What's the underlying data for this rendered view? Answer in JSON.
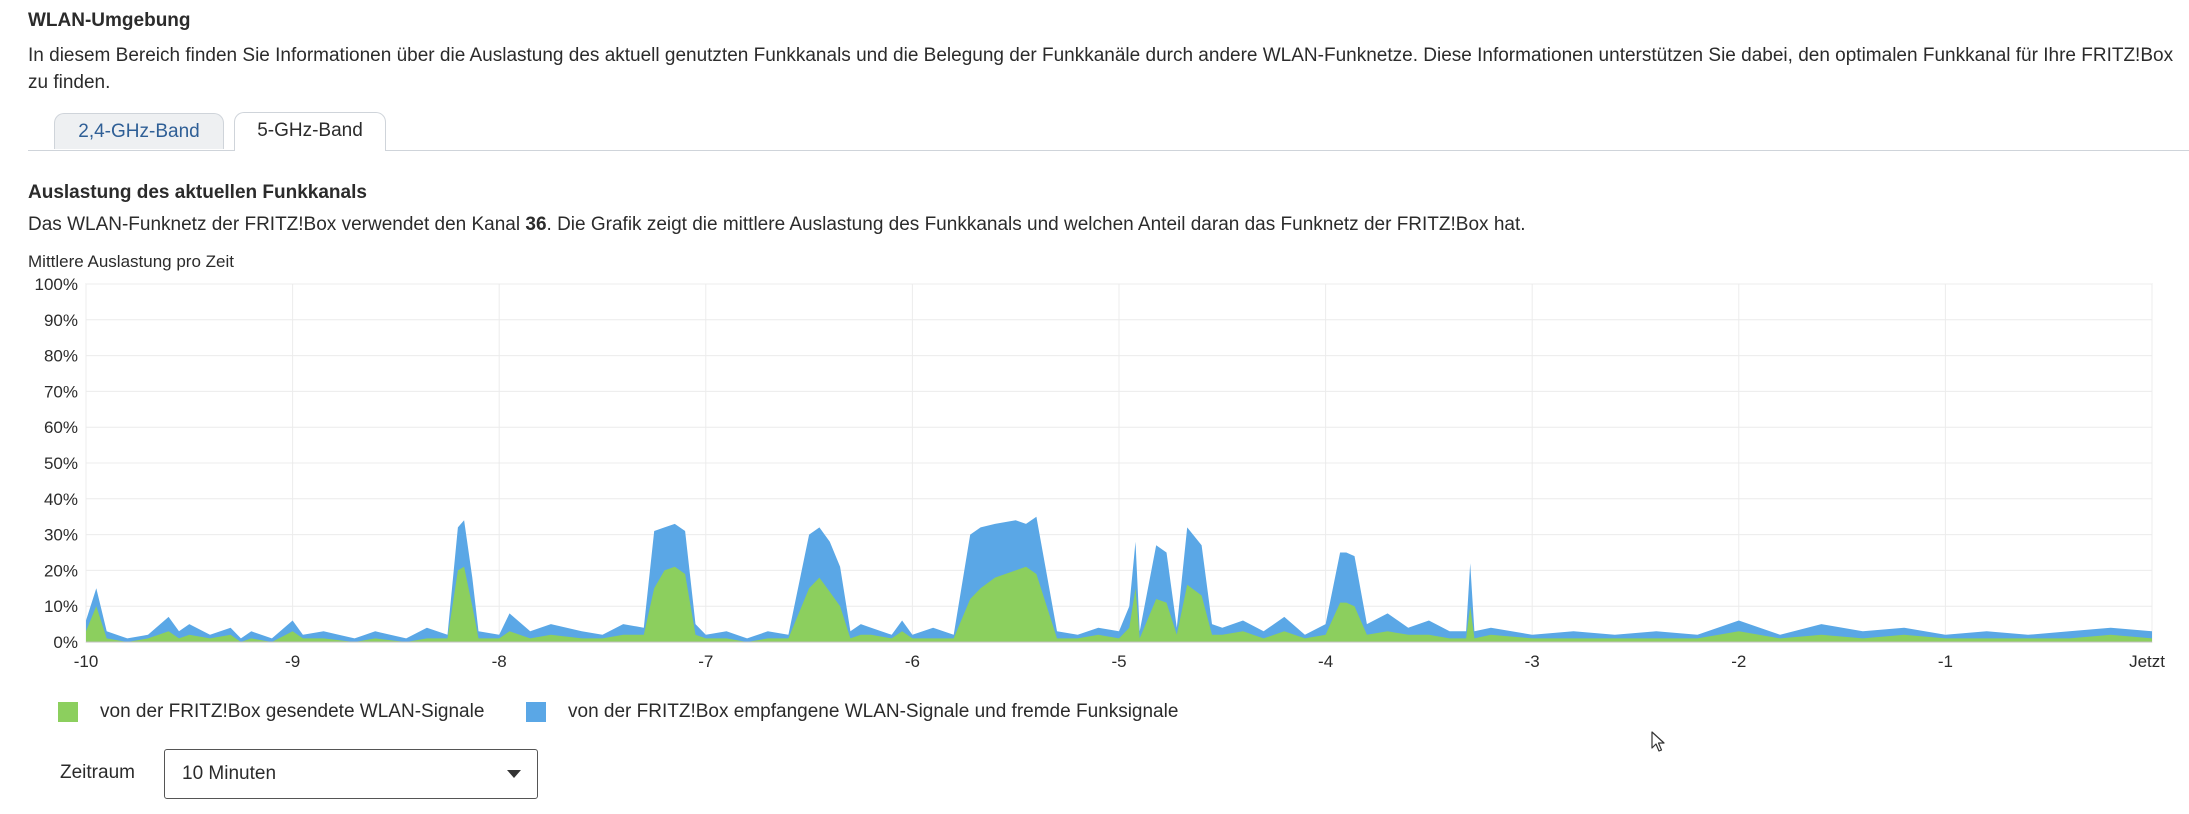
{
  "section": {
    "title": "WLAN-Umgebung",
    "intro": "In diesem Bereich finden Sie Informationen über die Auslastung des aktuell genutzten Funkkanals und die Belegung der Funkkanäle durch andere WLAN-Funknetze. Diese Informationen unterstützen Sie dabei, den optimalen Funkkanal für Ihre FRITZ!Box zu finden."
  },
  "tabs": [
    {
      "label": "2,4-GHz-Band",
      "active": false
    },
    {
      "label": "5-GHz-Band",
      "active": true
    }
  ],
  "channel": {
    "title": "Auslastung des aktuellen Funkkanals",
    "desc_pre": "Das WLAN-Funknetz der FRITZ!Box verwendet den Kanal ",
    "channel_number": "36",
    "desc_post": ". Die Grafik zeigt die mittlere Auslastung des Funkkanals und welchen Anteil daran das Funknetz der FRITZ!Box hat.",
    "chart_label": "Mittlere Auslastung pro Zeit"
  },
  "chart_data": {
    "type": "area",
    "title": "",
    "xlabel": "",
    "ylabel": "Mittlere Auslastung pro Zeit",
    "xlim": [
      -10,
      0
    ],
    "ylim": [
      0,
      100
    ],
    "x_ticks": [
      "-10",
      "-9",
      "-8",
      "-7",
      "-6",
      "-5",
      "-4",
      "-3",
      "-2",
      "-1",
      "Jetzt"
    ],
    "y_ticks": [
      "0%",
      "10%",
      "20%",
      "30%",
      "40%",
      "50%",
      "60%",
      "70%",
      "80%",
      "90%",
      "100%"
    ],
    "grid": true,
    "stacked": false,
    "x": [
      -10,
      -9.95,
      -9.9,
      -9.8,
      -9.7,
      -9.6,
      -9.55,
      -9.5,
      -9.4,
      -9.3,
      -9.25,
      -9.2,
      -9.1,
      -9.0,
      -8.95,
      -8.85,
      -8.7,
      -8.6,
      -8.45,
      -8.35,
      -8.25,
      -8.2,
      -8.17,
      -8.13,
      -8.1,
      -8.0,
      -7.95,
      -7.85,
      -7.75,
      -7.6,
      -7.5,
      -7.4,
      -7.3,
      -7.25,
      -7.2,
      -7.15,
      -7.1,
      -7.05,
      -7.0,
      -6.9,
      -6.8,
      -6.7,
      -6.6,
      -6.5,
      -6.45,
      -6.4,
      -6.35,
      -6.3,
      -6.25,
      -6.2,
      -6.1,
      -6.05,
      -6.0,
      -5.9,
      -5.8,
      -5.72,
      -5.67,
      -5.6,
      -5.5,
      -5.45,
      -5.4,
      -5.3,
      -5.2,
      -5.1,
      -5.0,
      -4.95,
      -4.92,
      -4.9,
      -4.82,
      -4.77,
      -4.72,
      -4.67,
      -4.6,
      -4.55,
      -4.5,
      -4.4,
      -4.3,
      -4.2,
      -4.1,
      -4.0,
      -3.93,
      -3.9,
      -3.86,
      -3.8,
      -3.7,
      -3.6,
      -3.5,
      -3.4,
      -3.32,
      -3.3,
      -3.28,
      -3.2,
      -3.0,
      -2.8,
      -2.6,
      -2.4,
      -2.2,
      -2.0,
      -1.8,
      -1.6,
      -1.4,
      -1.2,
      -1.0,
      -0.8,
      -0.6,
      -0.4,
      -0.2,
      0
    ],
    "series": [
      {
        "name": "von der FRITZ!Box empfangene WLAN-Signale und fremde Funksignale",
        "color": "#5aa7e6",
        "values": [
          6,
          15,
          3,
          1,
          2,
          7,
          3,
          5,
          2,
          4,
          1,
          3,
          1,
          6,
          2,
          3,
          1,
          3,
          1,
          4,
          2,
          32,
          34,
          18,
          3,
          2,
          8,
          3,
          5,
          3,
          2,
          5,
          4,
          31,
          32,
          33,
          31,
          5,
          2,
          3,
          1,
          3,
          2,
          30,
          32,
          28,
          21,
          3,
          5,
          4,
          2,
          6,
          2,
          4,
          2,
          30,
          32,
          33,
          34,
          33,
          35,
          3,
          2,
          4,
          3,
          10,
          28,
          3,
          27,
          25,
          4,
          32,
          27,
          5,
          4,
          6,
          3,
          7,
          2,
          5,
          25,
          25,
          24,
          5,
          8,
          4,
          6,
          3,
          3,
          22,
          3,
          4,
          2,
          3,
          2,
          3,
          2,
          6,
          2,
          5,
          3,
          4,
          2,
          3,
          2,
          3,
          4,
          3
        ],
        "legend_label": "von der FRITZ!Box empfangene WLAN-Signale und fremde Funksignale"
      },
      {
        "name": "von der FRITZ!Box gesendete WLAN-Signale",
        "color": "#8ccf5e",
        "values": [
          3,
          10,
          1,
          0,
          1,
          3,
          1,
          2,
          1,
          2,
          0,
          1,
          0,
          3,
          1,
          1,
          0,
          1,
          0,
          1,
          1,
          20,
          21,
          10,
          1,
          1,
          3,
          1,
          2,
          1,
          1,
          2,
          2,
          15,
          20,
          21,
          19,
          2,
          1,
          1,
          0,
          1,
          1,
          15,
          18,
          14,
          10,
          1,
          2,
          2,
          1,
          3,
          1,
          1,
          1,
          12,
          15,
          18,
          20,
          21,
          19,
          1,
          1,
          2,
          1,
          4,
          15,
          1,
          12,
          11,
          2,
          16,
          13,
          2,
          2,
          3,
          1,
          3,
          1,
          2,
          11,
          11,
          10,
          2,
          3,
          2,
          2,
          1,
          1,
          10,
          1,
          2,
          1,
          1,
          1,
          1,
          1,
          3,
          1,
          2,
          1,
          2,
          1,
          1,
          1,
          1,
          2,
          1
        ],
        "legend_label": "von der FRITZ!Box gesendete WLAN-Signale"
      }
    ],
    "legend": "bottom-left"
  },
  "legend": {
    "sent_label": "von der FRITZ!Box gesendete WLAN-Signale",
    "sent_color": "#8ccf5e",
    "received_label": "von der FRITZ!Box empfangene WLAN-Signale und fremde Funksignale",
    "received_color": "#5aa7e6"
  },
  "zeitraum": {
    "label": "Zeitraum",
    "selected": "10 Minuten",
    "icon": "chevron-down-icon"
  }
}
